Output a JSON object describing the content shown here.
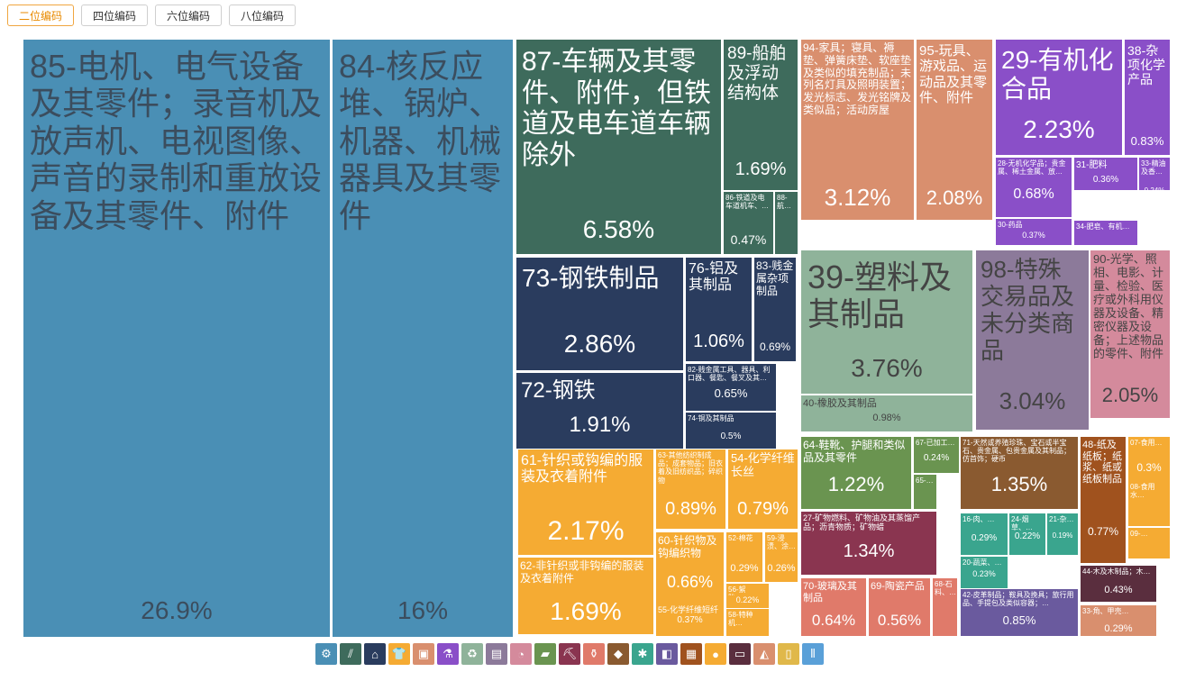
{
  "tabs": [
    {
      "label": "二位编码",
      "active": true
    },
    {
      "label": "四位编码",
      "active": false
    },
    {
      "label": "六位编码",
      "active": false
    },
    {
      "label": "八位编码",
      "active": false
    }
  ],
  "chart_data": {
    "type": "treemap",
    "unit": "%",
    "items": [
      {
        "label": "85-电机、电气设备及其零件；录音机及放声机、电视图像、声音的录制和重放设备及其零件、附件",
        "value": 26.9,
        "value_text": "26.9%",
        "color": "#4a8fb5"
      },
      {
        "label": "84-核反应堆、锅炉、机器、机械器具及其零件",
        "value": 16,
        "value_text": "16%",
        "color": "#4a8fb5"
      },
      {
        "label": "87-车辆及其零件、附件，但铁道及电车道车辆除外",
        "value": 6.58,
        "value_text": "6.58%",
        "color": "#3e6b5c"
      },
      {
        "label": "89-船舶及浮动结构体",
        "value": 1.69,
        "value_text": "1.69%",
        "color": "#3e6b5c"
      },
      {
        "label": "86-铁道及电车道机车、…",
        "value": 0.47,
        "value_text": "0.47%",
        "color": "#3e6b5c"
      },
      {
        "label": "88-航…",
        "value": null,
        "value_text": "",
        "color": "#3e6b5c"
      },
      {
        "label": "73-钢铁制品",
        "value": 2.86,
        "value_text": "2.86%",
        "color": "#2a3c5e"
      },
      {
        "label": "76-铝及其制品",
        "value": 1.06,
        "value_text": "1.06%",
        "color": "#2a3c5e"
      },
      {
        "label": "83-贱金属杂项制品",
        "value": 0.69,
        "value_text": "0.69%",
        "color": "#2a3c5e"
      },
      {
        "label": "72-钢铁",
        "value": 1.91,
        "value_text": "1.91%",
        "color": "#2a3c5e"
      },
      {
        "label": "82-贱金属工具、器具、利口器、餐匙、餐叉及其…",
        "value": 0.65,
        "value_text": "0.65%",
        "color": "#2a3c5e"
      },
      {
        "label": "74-铜及其制品",
        "value": 0.5,
        "value_text": "0.5%",
        "color": "#2a3c5e"
      },
      {
        "label": "94-家具；寝具、褥垫、弹簧床垫、软座垫及类似的填充制品；未列名灯具及照明装置；发光标志、发光铭牌及类似品；活动房屋",
        "value": 3.12,
        "value_text": "3.12%",
        "color": "#d98f6e"
      },
      {
        "label": "95-玩具、游戏品、运动品及其零件、附件",
        "value": 2.08,
        "value_text": "2.08%",
        "color": "#d98f6e"
      },
      {
        "label": "29-有机化合品",
        "value": 2.23,
        "value_text": "2.23%",
        "color": "#8a4fc8"
      },
      {
        "label": "38-杂项化学产品",
        "value": 0.83,
        "value_text": "0.83%",
        "color": "#8a4fc8"
      },
      {
        "label": "28-无机化学品；贵金属、稀土金属、放…",
        "value": 0.68,
        "value_text": "0.68%",
        "color": "#8a4fc8"
      },
      {
        "label": "31-肥料",
        "value": 0.36,
        "value_text": "0.36%",
        "color": "#8a4fc8"
      },
      {
        "label": "33-精油及香…",
        "value": 0.24,
        "value_text": "0.24%",
        "color": "#8a4fc8"
      },
      {
        "label": "30-药品",
        "value": 0.37,
        "value_text": "0.37%",
        "color": "#8a4fc8"
      },
      {
        "label": "34-肥皂、有机…",
        "value": null,
        "value_text": "",
        "color": "#8a4fc8"
      },
      {
        "label": "39-塑料及其制品",
        "value": 3.76,
        "value_text": "3.76%",
        "color": "#8fb39a"
      },
      {
        "label": "40-橡胶及其制品",
        "value": 0.98,
        "value_text": "0.98%",
        "color": "#8fb39a"
      },
      {
        "label": "98-特殊交易品及未分类商品",
        "value": 3.04,
        "value_text": "3.04%",
        "color": "#8c7a9a"
      },
      {
        "label": "90-光学、照相、电影、计量、检验、医疗或外科用仪器及设备、精密仪器及设备；上述物品的零件、附件",
        "value": 2.05,
        "value_text": "2.05%",
        "color": "#d48a9c"
      },
      {
        "label": "61-针织或钩编的服装及衣着附件",
        "value": 2.17,
        "value_text": "2.17%",
        "color": "#f5ab33"
      },
      {
        "label": "63-其他纺织制成品；成套物品；旧衣着及旧纺织品；碎织物",
        "value": 0.89,
        "value_text": "0.89%",
        "color": "#f5ab33"
      },
      {
        "label": "54-化学纤维长丝",
        "value": 0.79,
        "value_text": "0.79%",
        "color": "#f5ab33"
      },
      {
        "label": "62-非针织或非钩编的服装及衣着附件",
        "value": 1.69,
        "value_text": "1.69%",
        "color": "#f5ab33"
      },
      {
        "label": "60-针织物及钩编织物",
        "value": 0.66,
        "value_text": "0.66%",
        "color": "#f5ab33"
      },
      {
        "label": "52-棉花",
        "value": 0.29,
        "value_text": "0.29%",
        "color": "#f5ab33"
      },
      {
        "label": "59-浸渍、涂…",
        "value": 0.26,
        "value_text": "0.26%",
        "color": "#f5ab33"
      },
      {
        "label": "56-絮胎、…",
        "value": 0.22,
        "value_text": "0.22%",
        "color": "#f5ab33"
      },
      {
        "label": "55-化学纤维短纤",
        "value": 0.37,
        "value_text": "0.37%",
        "color": "#f5ab33"
      },
      {
        "label": "58-特种机…",
        "value": null,
        "value_text": "",
        "color": "#f5ab33"
      },
      {
        "label": "64-鞋靴、护腿和类似品及其零件",
        "value": 1.22,
        "value_text": "1.22%",
        "color": "#6a9450"
      },
      {
        "label": "67-已加工…",
        "value": 0.24,
        "value_text": "0.24%",
        "color": "#6a9450"
      },
      {
        "label": "65-…",
        "value": null,
        "value_text": "",
        "color": "#6a9450"
      },
      {
        "label": "27-矿物燃料、矿物油及其蒸馏产品；沥青物质；矿物蜡",
        "value": 1.34,
        "value_text": "1.34%",
        "color": "#8a3550"
      },
      {
        "label": "70-玻璃及其制品",
        "value": 0.64,
        "value_text": "0.64%",
        "color": "#e07a6a"
      },
      {
        "label": "69-陶瓷产品",
        "value": 0.56,
        "value_text": "0.56%",
        "color": "#e07a6a"
      },
      {
        "label": "68-石料、…",
        "value": null,
        "value_text": "",
        "color": "#e07a6a"
      },
      {
        "label": "71-天然或养殖珍珠、宝石或半宝石、贵金属、包贵金属及其制品；仿首饰；硬币",
        "value": 1.35,
        "value_text": "1.35%",
        "color": "#8a5a30"
      },
      {
        "label": "16-肉、…",
        "value": 0.29,
        "value_text": "0.29%",
        "color": "#3aa58e"
      },
      {
        "label": "24-烟草、…",
        "value": 0.22,
        "value_text": "0.22%",
        "color": "#3aa58e"
      },
      {
        "label": "21-杂…",
        "value": 0.19,
        "value_text": "0.19%",
        "color": "#3aa58e"
      },
      {
        "label": "20-蔬菜、…",
        "value": 0.23,
        "value_text": "0.23%",
        "color": "#3aa58e"
      },
      {
        "label": "42-皮革制品；鞍具及挽具；旅行用品、手提包及类似容器；…",
        "value": 0.85,
        "value_text": "0.85%",
        "color": "#6a5a9e"
      },
      {
        "label": "48-纸及纸板；纸浆、纸或纸板制品",
        "value": 0.77,
        "value_text": "0.77%",
        "color": "#a0521e"
      },
      {
        "label": "07-食用…",
        "value": 0.3,
        "value_text": "0.3%",
        "color": "#f5ab33"
      },
      {
        "label": "08-食用水…",
        "value": null,
        "value_text": "",
        "color": "#f5ab33"
      },
      {
        "label": "09-…",
        "value": null,
        "value_text": "",
        "color": "#f5ab33"
      },
      {
        "label": "44-木及木制品；木…",
        "value": 0.43,
        "value_text": "0.43%",
        "color": "#5a2e3e"
      },
      {
        "label": "33-角、甲壳…",
        "value": 0.29,
        "value_text": "0.29%",
        "color": "#d98f6e"
      }
    ]
  },
  "legend_icons": [
    {
      "name": "gear-icon",
      "glyph": "⚙",
      "color": "#4a8fb5"
    },
    {
      "name": "road-icon",
      "glyph": "⫽",
      "color": "#3e6b5c"
    },
    {
      "name": "anvil-icon",
      "glyph": "⌂",
      "color": "#2a3c5e"
    },
    {
      "name": "shirt-icon",
      "glyph": "👕",
      "color": "#f5ab33"
    },
    {
      "name": "box-icon",
      "glyph": "▣",
      "color": "#d98f6e"
    },
    {
      "name": "flask-icon",
      "glyph": "⚗",
      "color": "#8a4fc8"
    },
    {
      "name": "recycle-icon",
      "glyph": "♻",
      "color": "#8fb39a"
    },
    {
      "name": "easel-icon",
      "glyph": "▤",
      "color": "#8c7a9a"
    },
    {
      "name": "gauge-icon",
      "glyph": "◔",
      "color": "#d48a9c"
    },
    {
      "name": "shoe-icon",
      "glyph": "▰",
      "color": "#6a9450"
    },
    {
      "name": "pickaxe-icon",
      "glyph": "⛏",
      "color": "#8a3550"
    },
    {
      "name": "vase-icon",
      "glyph": "⚱",
      "color": "#e07a6a"
    },
    {
      "name": "gem-icon",
      "glyph": "◆",
      "color": "#8a5a30"
    },
    {
      "name": "wheat-icon",
      "glyph": "✱",
      "color": "#3aa58e"
    },
    {
      "name": "bag-icon",
      "glyph": "◧",
      "color": "#6a5a9e"
    },
    {
      "name": "scroll-icon",
      "glyph": "▦",
      "color": "#a0521e"
    },
    {
      "name": "fruit-icon",
      "glyph": "●",
      "color": "#f5ab33"
    },
    {
      "name": "plank-icon",
      "glyph": "▭",
      "color": "#5a2e3e"
    },
    {
      "name": "animal-icon",
      "glyph": "◭",
      "color": "#d98f6e"
    },
    {
      "name": "bottle-icon",
      "glyph": "▯",
      "color": "#e0b84a"
    },
    {
      "name": "bottles-icon",
      "glyph": "⫴",
      "color": "#5aa0d8"
    }
  ]
}
